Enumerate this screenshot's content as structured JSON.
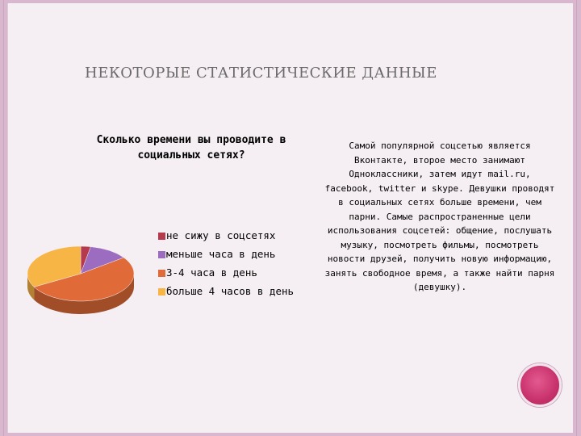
{
  "slide": {
    "title": "НЕКОТОРЫЕ СТАТИСТИЧЕСКИЕ ДАННЫЕ",
    "description": "Самой популярной соцсетью является Вконтакте, второе место занимают Одноклассники, затем идут mail.ru, facebook, twitter и skype. Девушки проводят в социальных сетях больше времени, чем парни. Самые распространенные цели использования соцсетей: общение, послушать музыку, посмотреть фильмы, посмотреть новости друзей, получить новую информацию, занять свободное время, а также найти парня (девушку)."
  },
  "chart_data": {
    "type": "pie",
    "title": "Сколько времени вы проводите в социальных сетях?",
    "categories": [
      "не сижу в соцсетях",
      "меньше часа в день",
      "3-4 часа в день",
      "больше 4 часов в день"
    ],
    "values": [
      3,
      12,
      52,
      33
    ],
    "colors": [
      "#b53a4b",
      "#9b6cbf",
      "#e06b38",
      "#f6b545"
    ],
    "legend_position": "right",
    "style": "3d"
  }
}
